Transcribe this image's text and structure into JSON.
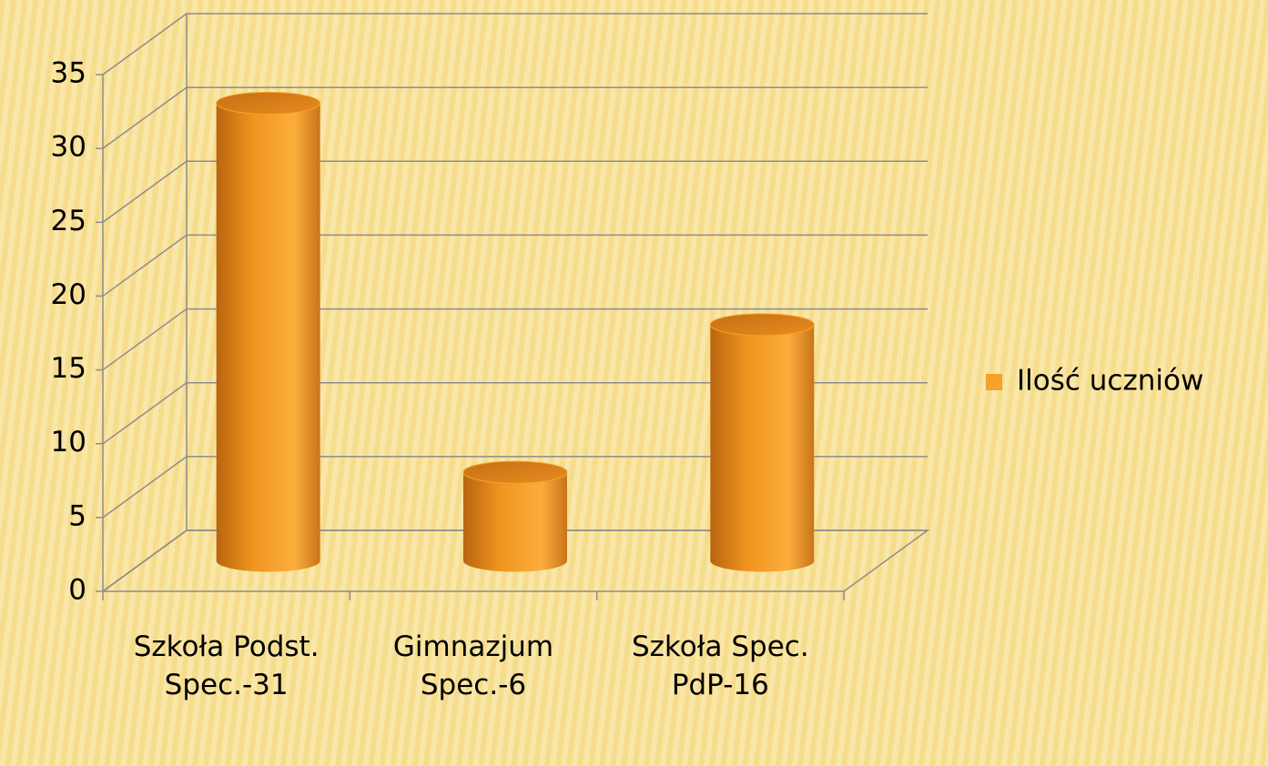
{
  "chart_data": {
    "type": "bar",
    "categories": [
      "Szkoła Podst. Spec.-31",
      "Gimnazjum Spec.-6",
      "Szkoła Spec.  PdP-16"
    ],
    "series": [
      {
        "name": "Ilość uczniów",
        "color": "#f5a12a",
        "values": [
          31,
          6,
          16
        ]
      }
    ],
    "ylim": [
      0,
      35
    ],
    "yticks": [
      0,
      5,
      10,
      15,
      20,
      25,
      30,
      35
    ],
    "grid": true,
    "legend": "right"
  }
}
